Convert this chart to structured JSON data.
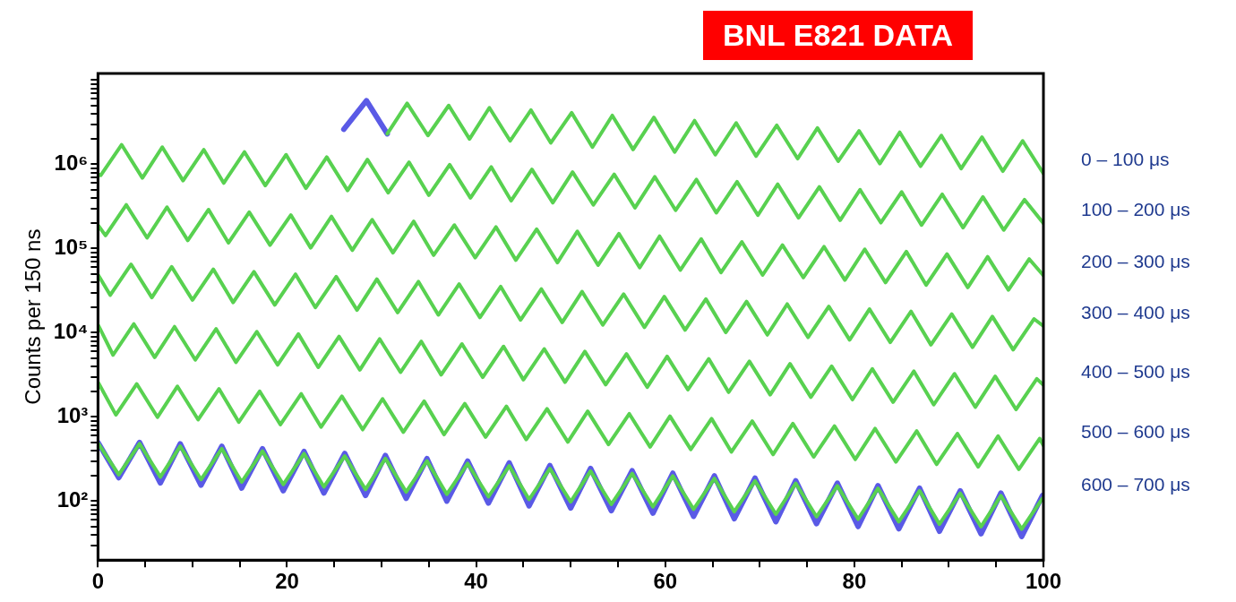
{
  "chart_data": {
    "type": "line",
    "ylabel": "Counts per 150 ns",
    "annotations": [
      "BNL E821 DATA"
    ],
    "log": true,
    "marker": "none",
    "line_style": "solid",
    "xlim": [
      0,
      100
    ],
    "xticks": [
      0,
      {
        "value": 5,
        "label": null
      },
      {
        "value": 10,
        "label": null
      },
      {
        "value": 15,
        "label": null
      },
      20,
      {
        "value": 25,
        "label": null
      },
      {
        "value": 30,
        "label": null
      },
      {
        "value": 35,
        "label": null
      },
      40,
      {
        "value": 45,
        "label": null
      },
      {
        "value": 50,
        "label": null
      },
      {
        "value": 55,
        "label": null
      },
      60,
      {
        "value": 65,
        "label": null
      },
      {
        "value": 70,
        "label": null
      },
      {
        "value": 75,
        "label": null
      },
      80,
      {
        "value": 85,
        "label": null
      },
      {
        "value": 90,
        "label": null
      },
      {
        "value": 95,
        "label": null
      },
      100
    ],
    "ylim": [
      20,
      12000000
    ],
    "yticks": [
      {
        "value": 30,
        "label": null
      },
      {
        "value": 40,
        "label": null
      },
      {
        "value": 50,
        "label": null
      },
      {
        "value": 60,
        "label": null
      },
      {
        "value": 70,
        "label": null
      },
      {
        "value": 80,
        "label": null
      },
      {
        "value": 90,
        "label": null
      },
      {
        "value": 100,
        "label": "10²"
      },
      {
        "value": 200,
        "label": null
      },
      {
        "value": 300,
        "label": null
      },
      {
        "value": 400,
        "label": null
      },
      {
        "value": 500,
        "label": null
      },
      {
        "value": 600,
        "label": null
      },
      {
        "value": 700,
        "label": null
      },
      {
        "value": 800,
        "label": null
      },
      {
        "value": 900,
        "label": null
      },
      {
        "value": 1000,
        "label": "10³"
      },
      {
        "value": 2000,
        "label": null
      },
      {
        "value": 3000,
        "label": null
      },
      {
        "value": 4000,
        "label": null
      },
      {
        "value": 5000,
        "label": null
      },
      {
        "value": 6000,
        "label": null
      },
      {
        "value": 7000,
        "label": null
      },
      {
        "value": 8000,
        "label": null
      },
      {
        "value": 9000,
        "label": null
      },
      {
        "value": 10000,
        "label": "10⁴"
      },
      {
        "value": 20000,
        "label": null
      },
      {
        "value": 30000,
        "label": null
      },
      {
        "value": 40000,
        "label": null
      },
      {
        "value": 50000,
        "label": null
      },
      {
        "value": 60000,
        "label": null
      },
      {
        "value": 70000,
        "label": null
      },
      {
        "value": 80000,
        "label": null
      },
      {
        "value": 90000,
        "label": null
      },
      {
        "value": 100000,
        "label": "10⁵"
      },
      {
        "value": 200000,
        "label": null
      },
      {
        "value": 300000,
        "label": null
      },
      {
        "value": 400000,
        "label": null
      },
      {
        "value": 500000,
        "label": null
      },
      {
        "value": 600000,
        "label": null
      },
      {
        "value": 700000,
        "label": null
      },
      {
        "value": 800000,
        "label": null
      },
      {
        "value": 900000,
        "label": null
      },
      {
        "value": 1000000,
        "label": "10⁶"
      },
      {
        "value": 2000000,
        "label": null
      },
      {
        "value": 3000000,
        "label": null
      },
      {
        "value": 4000000,
        "label": null
      },
      {
        "value": 5000000,
        "label": null
      },
      {
        "value": 6000000,
        "label": null
      },
      {
        "value": 7000000,
        "label": null
      },
      {
        "value": 8000000,
        "label": null
      },
      {
        "value": 9000000,
        "label": null
      },
      {
        "value": 10000000,
        "label": null
      }
    ],
    "series": [
      {
        "name": "0 – 100 μs",
        "color": "#58d150",
        "x": [
          30.6,
          32.7,
          34.9,
          37.1,
          39.3,
          41.4,
          43.6,
          45.8,
          47.9,
          50.1,
          52.3,
          54.4,
          56.6,
          58.8,
          61.0,
          63.1,
          65.3,
          67.5,
          69.6,
          71.8,
          74.0,
          76.1,
          78.3,
          80.5,
          82.7,
          84.8,
          87.0,
          89.2,
          91.3,
          93.5,
          95.7,
          97.8,
          100.0
        ],
        "values": [
          2300000.0,
          5300000.0,
          2200000.0,
          5000000.0,
          2000000.0,
          4700000.0,
          1900000.0,
          4400000.0,
          1800000.0,
          4100000.0,
          1600000.0,
          3800000.0,
          1500000.0,
          3600000.0,
          1400000.0,
          3300000.0,
          1300000.0,
          3100000.0,
          1250000.0,
          2900000.0,
          1170000.0,
          2700000.0,
          1090000.0,
          2500000.0,
          1020000.0,
          2400000.0,
          950000.0,
          2200000.0,
          890000.0,
          2100000.0,
          830000.0,
          1900000.0,
          780000.0
        ]
      },
      {
        "name": "100 – 200 μs",
        "color": "#58d150",
        "x": [
          0,
          0.3,
          2.5,
          4.7,
          6.8,
          9.0,
          11.2,
          13.3,
          15.5,
          17.7,
          19.9,
          22.0,
          24.2,
          26.4,
          28.5,
          30.7,
          32.9,
          35.0,
          37.2,
          39.4,
          41.6,
          43.7,
          45.9,
          48.1,
          50.2,
          52.4,
          54.6,
          56.8,
          58.9,
          61.1,
          63.3,
          65.4,
          67.6,
          69.8,
          71.9,
          74.1,
          76.3,
          78.5,
          80.6,
          82.8,
          85.0,
          87.1,
          89.3,
          91.5,
          93.6,
          95.8,
          98.0,
          100
        ],
        "values": [
          760000.0,
          740000.0,
          1710000.0,
          690000.0,
          1600000.0,
          640000.0,
          1490000.0,
          600000.0,
          1400000.0,
          560000.0,
          1300000.0,
          520000.0,
          1220000.0,
          490000.0,
          1140000.0,
          460000.0,
          1060000.0,
          430000.0,
          990000.0,
          400000.0,
          930000.0,
          370000.0,
          870000.0,
          350000.0,
          810000.0,
          330000.0,
          760000.0,
          305000.0,
          710000.0,
          285000.0,
          660000.0,
          266000.0,
          620000.0,
          249000.0,
          580000.0,
          232000.0,
          540000.0,
          217000.0,
          500000.0,
          203000.0,
          470000.0,
          190000.0,
          440000.0,
          177000.0,
          410000.0,
          166000.0,
          380000.0,
          200000.0
        ]
      },
      {
        "name": "200 – 300 μs",
        "color": "#58d150",
        "x": [
          0,
          0.8,
          3.0,
          5.2,
          7.3,
          9.5,
          11.7,
          13.8,
          16.0,
          18.2,
          20.4,
          22.5,
          24.7,
          26.9,
          29.0,
          31.2,
          33.4,
          35.5,
          37.7,
          39.9,
          42.1,
          44.2,
          46.4,
          48.6,
          50.7,
          52.9,
          55.1,
          57.3,
          59.4,
          61.6,
          63.8,
          65.9,
          68.1,
          70.3,
          72.4,
          74.6,
          76.8,
          79.0,
          81.1,
          83.3,
          85.5,
          87.6,
          89.8,
          92.0,
          94.1,
          96.3,
          98.5,
          100
        ],
        "values": [
          190000.0,
          143000.0,
          330000.0,
          134000.0,
          310000.0,
          125000.0,
          290000.0,
          117000.0,
          270000.0,
          110000.0,
          250000.0,
          102000.0,
          240000.0,
          95600.0,
          220000.0,
          89300.0,
          210000.0,
          83500.0,
          190000.0,
          78000.0,
          180000.0,
          72900.0,
          170000.0,
          68100.0,
          160000.0,
          63600.0,
          150000.0,
          59400.0,
          140000.0,
          55500.0,
          130000.0,
          51900.0,
          120000.0,
          48500.0,
          110000.0,
          45300.0,
          105000.0,
          42300.0,
          98000.0,
          39500.0,
          92000.0,
          36900.0,
          86000.0,
          34500.0,
          80000.0,
          32300.0,
          75000.0,
          48000.0
        ]
      },
      {
        "name": "300 – 400 μs",
        "color": "#58d150",
        "x": [
          0,
          1.3,
          3.5,
          5.7,
          7.8,
          10.0,
          12.2,
          14.3,
          16.5,
          18.7,
          20.9,
          23.0,
          25.2,
          27.4,
          29.5,
          31.7,
          33.9,
          36.0,
          38.2,
          40.4,
          42.6,
          44.7,
          46.9,
          49.1,
          51.2,
          53.4,
          55.6,
          57.8,
          59.9,
          62.1,
          64.3,
          66.4,
          68.6,
          70.8,
          72.9,
          75.1,
          77.3,
          79.5,
          81.6,
          83.8,
          86.0,
          88.1,
          90.3,
          92.5,
          94.6,
          96.8,
          99.0,
          100
        ],
        "values": [
          49000.0,
          28000.0,
          65000.0,
          26200.0,
          60700.0,
          24500.0,
          56800.0,
          22900.0,
          53000.0,
          21400.0,
          49500.0,
          20000.0,
          46300.0,
          18600.0,
          43300.0,
          17400.0,
          40400.0,
          16300.0,
          37800.0,
          15200.0,
          35300.0,
          14200.0,
          33000.0,
          13300.0,
          30800.0,
          12400.0,
          28800.0,
          11600.0,
          26900.0,
          10800.0,
          25100.0,
          10100.0,
          23500.0,
          9450.0,
          21900.0,
          8830.0,
          20500.0,
          8250.0,
          19100.0,
          7710.0,
          17900.0,
          7200.0,
          16700.0,
          6730.0,
          15600.0,
          6290.0,
          14600.0,
          12000.0
        ]
      },
      {
        "name": "400 – 500 μs",
        "color": "#58d150",
        "x": [
          0,
          1.6,
          3.8,
          6.0,
          8.1,
          10.3,
          12.5,
          14.6,
          16.8,
          19.0,
          21.2,
          23.3,
          25.5,
          27.7,
          29.8,
          32.0,
          34.2,
          36.3,
          38.5,
          40.7,
          42.9,
          45.0,
          47.2,
          49.4,
          51.5,
          53.7,
          55.9,
          58.1,
          60.2,
          62.4,
          64.6,
          66.7,
          68.9,
          71.1,
          73.2,
          75.4,
          77.6,
          79.8,
          81.9,
          84.1,
          86.3,
          88.4,
          90.6,
          92.8,
          94.9,
          97.1,
          99.3,
          100
        ],
        "values": [
          12500.0,
          5450.0,
          12700.0,
          5110.0,
          11800.0,
          4770.0,
          11100.0,
          4460.0,
          10300.0,
          4160.0,
          9660.0,
          3890.0,
          9030.0,
          3630.0,
          8430.0,
          3400.0,
          7880.0,
          3170.0,
          7360.0,
          2960.0,
          6880.0,
          2770.0,
          6430.0,
          2590.0,
          6000.0,
          2420.0,
          5610.0,
          2260.0,
          5240.0,
          2110.0,
          4900.0,
          1970.0,
          4580.0,
          1840.0,
          4280.0,
          1720.0,
          4000.0,
          1610.0,
          3730.0,
          1500.0,
          3490.0,
          1400.0,
          3260.0,
          1310.0,
          3040.0,
          1230.0,
          2840.0,
          2400.0
        ]
      },
      {
        "name": "500 – 600 μs",
        "color": "#58d150",
        "x": [
          0,
          1.9,
          4.1,
          6.3,
          8.4,
          10.6,
          12.8,
          14.9,
          17.1,
          19.3,
          21.5,
          23.6,
          25.8,
          28.0,
          30.1,
          32.3,
          34.5,
          36.6,
          38.8,
          41.0,
          43.2,
          45.3,
          47.5,
          49.7,
          51.8,
          54.0,
          56.2,
          58.4,
          60.5,
          62.7,
          64.9,
          67.0,
          69.2,
          71.4,
          73.5,
          75.7,
          77.9,
          80.1,
          82.2,
          84.4,
          86.6,
          88.7,
          90.9,
          93.1,
          95.2,
          97.4,
          99.6,
          100
        ],
        "values": [
          2600.0,
          1060.0,
          2470.0,
          995,
          2310.0,
          930,
          2160.0,
          869,
          2020.0,
          812,
          1880.0,
          759,
          1760.0,
          709,
          1640.0,
          662,
          1540.0,
          619,
          1440.0,
          578,
          1340.0,
          540,
          1250.0,
          505,
          1170.0,
          472,
          1090.0,
          441,
          1020.0,
          412,
          955,
          385,
          892,
          359,
          834,
          336,
          779,
          314,
          728,
          293,
          680,
          274,
          635,
          256,
          594,
          239,
          555,
          460
        ]
      },
      {
        "name": "600 – 700 μs",
        "color": "#58d150",
        "x": [
          0,
          2.2,
          4.4,
          6.6,
          8.7,
          10.9,
          13.1,
          15.2,
          17.4,
          19.6,
          21.8,
          23.9,
          26.1,
          28.3,
          30.4,
          32.6,
          34.8,
          36.9,
          39.1,
          41.3,
          43.5,
          45.6,
          47.8,
          50.0,
          52.1,
          54.3,
          56.5,
          58.7,
          60.8,
          63.0,
          65.2,
          67.3,
          69.5,
          71.7,
          73.8,
          76.0,
          78.2,
          80.4,
          82.5,
          84.7,
          86.9,
          89.0,
          91.2,
          93.4,
          95.5,
          97.7,
          99.9
        ],
        "values": [
          490,
          207,
          482,
          194,
          450,
          181,
          421,
          169,
          393,
          158,
          367,
          148,
          343,
          138,
          321,
          129,
          300,
          121,
          280,
          113,
          262,
          105,
          244,
          98.4,
          228,
          91.9,
          213,
          85.9,
          199,
          80.3,
          186,
          75,
          174,
          70.1,
          163,
          65.5,
          152,
          61.2,
          142,
          57.1,
          133,
          53.4,
          124,
          49.9,
          116,
          46.6,
          108
        ]
      },
      {
        "color": "#5a5ae6",
        "x": [
          26.0,
          28.4,
          30.6
        ],
        "values": [
          2600000.0,
          5700000.0,
          2300000.0
        ]
      },
      {
        "color": "#5a5ae6",
        "x": [
          0,
          2.2,
          4.4,
          6.6,
          8.7,
          10.9,
          13.1,
          15.2,
          17.4,
          19.6,
          21.8,
          23.9,
          26.1,
          28.3,
          30.4,
          32.6,
          34.8,
          36.9,
          39.1,
          41.3,
          43.5,
          45.6,
          47.8,
          50.0,
          52.1,
          54.3,
          56.5,
          58.7,
          60.8,
          63.0,
          65.2,
          67.3,
          69.5,
          71.7,
          73.8,
          76.0,
          78.2,
          80.4,
          82.5,
          84.7,
          86.9,
          89.0,
          91.2,
          93.4,
          95.5,
          97.7,
          99.9
        ],
        "values": [
          500,
          190,
          500,
          165,
          480,
          155,
          450,
          143,
          420,
          133,
          390,
          125,
          370,
          117,
          350,
          108,
          320,
          100,
          300,
          95,
          285,
          88,
          265,
          83,
          245,
          77,
          230,
          72,
          215,
          66,
          200,
          62,
          188,
          57,
          175,
          54,
          164,
          50,
          153,
          47,
          143,
          44,
          133,
          41,
          125,
          38,
          117
        ]
      }
    ]
  }
}
